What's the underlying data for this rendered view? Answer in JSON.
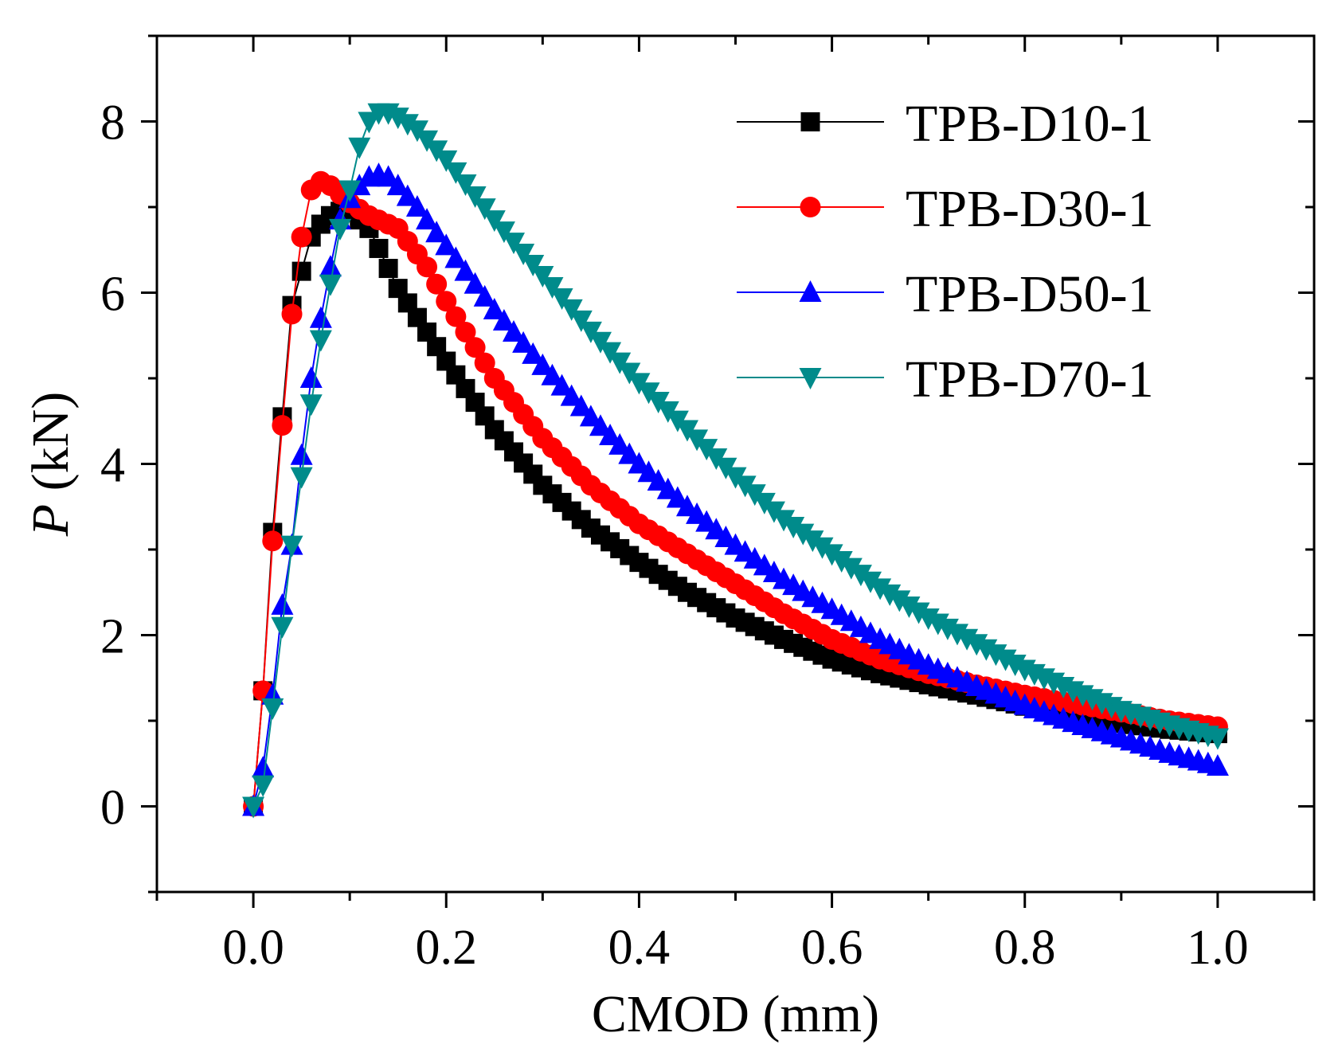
{
  "chart_data": {
    "type": "line",
    "title": "",
    "xlabel": "CMOD (mm)",
    "ylabel_var": "P",
    "ylabel_unit": " (kN)",
    "xlim": [
      -0.1,
      1.1
    ],
    "ylim": [
      -1,
      9
    ],
    "xticks": [
      0.0,
      0.2,
      0.4,
      0.6,
      0.8,
      1.0
    ],
    "xtick_labels": [
      "0.0",
      "0.2",
      "0.4",
      "0.6",
      "0.8",
      "1.0"
    ],
    "yticks": [
      0,
      2,
      4,
      6,
      8
    ],
    "ytick_labels": [
      "0",
      "2",
      "4",
      "6",
      "8"
    ],
    "grid": false,
    "legend_position": "top-right",
    "series": [
      {
        "name": "TPB-D10-1",
        "color": "#000000",
        "marker": "square",
        "x": [
          0,
          0.01,
          0.02,
          0.03,
          0.04,
          0.05,
          0.06,
          0.07,
          0.08,
          0.09,
          0.1,
          0.12,
          0.15,
          0.2,
          0.25,
          0.3,
          0.35,
          0.4,
          0.45,
          0.5,
          0.55,
          0.6,
          0.65,
          0.7,
          0.75,
          0.8,
          0.85,
          0.9,
          0.95,
          1.0
        ],
        "y": [
          0,
          1.35,
          3.2,
          4.55,
          5.85,
          6.25,
          6.65,
          6.8,
          6.9,
          6.95,
          6.95,
          6.75,
          6.05,
          5.2,
          4.4,
          3.75,
          3.25,
          2.85,
          2.5,
          2.2,
          1.95,
          1.72,
          1.55,
          1.42,
          1.3,
          1.17,
          1.05,
          0.97,
          0.9,
          0.85
        ]
      },
      {
        "name": "TPB-D30-1",
        "color": "#ff0000",
        "marker": "circle",
        "x": [
          0,
          0.01,
          0.02,
          0.03,
          0.04,
          0.05,
          0.06,
          0.07,
          0.08,
          0.09,
          0.1,
          0.12,
          0.15,
          0.18,
          0.2,
          0.25,
          0.3,
          0.35,
          0.4,
          0.45,
          0.5,
          0.55,
          0.6,
          0.65,
          0.7,
          0.75,
          0.8,
          0.85,
          0.9,
          0.95,
          1.0
        ],
        "y": [
          0,
          1.35,
          3.1,
          4.45,
          5.75,
          6.65,
          7.2,
          7.3,
          7.25,
          7.15,
          7.05,
          6.9,
          6.75,
          6.3,
          5.9,
          5.0,
          4.3,
          3.75,
          3.3,
          2.95,
          2.6,
          2.25,
          1.95,
          1.72,
          1.55,
          1.42,
          1.3,
          1.2,
          1.1,
          1.0,
          0.93
        ]
      },
      {
        "name": "TPB-D50-1",
        "color": "#0000ff",
        "marker": "triangle-up",
        "x": [
          0,
          0.01,
          0.02,
          0.03,
          0.04,
          0.05,
          0.06,
          0.07,
          0.08,
          0.09,
          0.1,
          0.11,
          0.12,
          0.13,
          0.14,
          0.15,
          0.17,
          0.2,
          0.25,
          0.3,
          0.35,
          0.4,
          0.45,
          0.5,
          0.55,
          0.6,
          0.65,
          0.7,
          0.75,
          0.8,
          0.85,
          0.9,
          0.95,
          1.0
        ],
        "y": [
          0,
          0.45,
          1.3,
          2.35,
          3.05,
          4.1,
          5.0,
          5.7,
          6.3,
          6.85,
          7.1,
          7.25,
          7.35,
          7.38,
          7.35,
          7.25,
          7.0,
          6.55,
          5.8,
          5.15,
          4.55,
          4.0,
          3.5,
          3.05,
          2.65,
          2.3,
          1.95,
          1.65,
          1.4,
          1.18,
          0.98,
          0.8,
          0.62,
          0.47
        ]
      },
      {
        "name": "TPB-D70-1",
        "color": "#008b8b",
        "marker": "triangle-down",
        "x": [
          0,
          0.01,
          0.02,
          0.03,
          0.04,
          0.05,
          0.06,
          0.07,
          0.08,
          0.09,
          0.1,
          0.11,
          0.12,
          0.13,
          0.14,
          0.15,
          0.17,
          0.2,
          0.25,
          0.3,
          0.35,
          0.4,
          0.45,
          0.5,
          0.55,
          0.6,
          0.65,
          0.7,
          0.75,
          0.8,
          0.85,
          0.9,
          0.95,
          1.0
        ],
        "y": [
          0,
          0.25,
          1.15,
          2.1,
          3.05,
          3.85,
          4.7,
          5.45,
          6.1,
          6.75,
          7.2,
          7.7,
          8.0,
          8.1,
          8.1,
          8.05,
          7.9,
          7.55,
          6.85,
          6.2,
          5.55,
          4.95,
          4.4,
          3.85,
          3.35,
          2.95,
          2.55,
          2.2,
          1.9,
          1.6,
          1.35,
          1.12,
          0.95,
          0.8
        ]
      }
    ]
  }
}
